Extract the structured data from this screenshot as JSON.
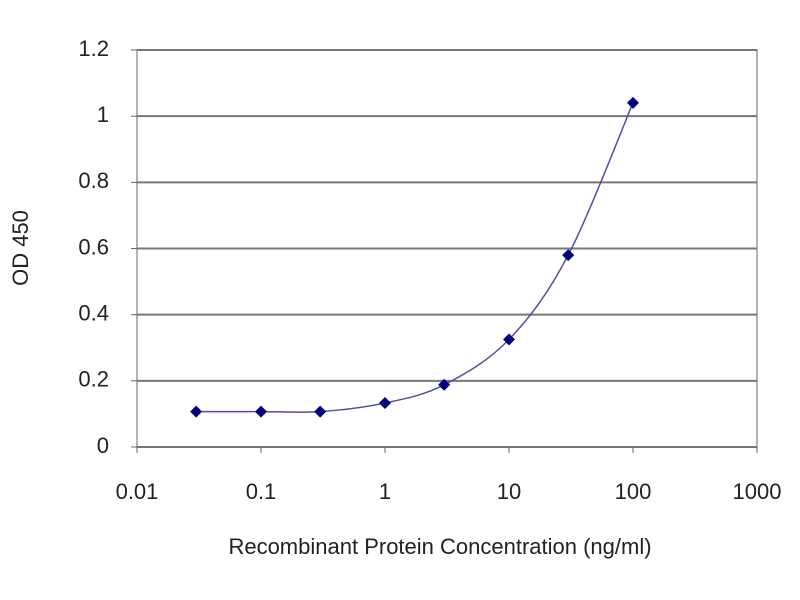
{
  "chart_data": {
    "type": "line",
    "x_label": "Recombinant Protein Concentration (ng/ml)",
    "y_label": "OD 450",
    "x": [
      0.03,
      0.1,
      0.3,
      1,
      3,
      10,
      30,
      100
    ],
    "series": [
      {
        "name": "OD 450",
        "color": "#000080",
        "line_color": "#5050a8",
        "values": [
          0.107,
          0.107,
          0.107,
          0.133,
          0.188,
          0.325,
          0.58,
          1.04
        ]
      }
    ],
    "xlim": [
      0.01,
      1000
    ],
    "xticks": [
      0.01,
      0.1,
      1,
      10,
      100,
      1000
    ],
    "xscale": "log",
    "ylim": [
      0,
      1.2
    ],
    "yticks": [
      0,
      0.2,
      0.4,
      0.6,
      0.8,
      1,
      1.2
    ],
    "grid": true
  }
}
